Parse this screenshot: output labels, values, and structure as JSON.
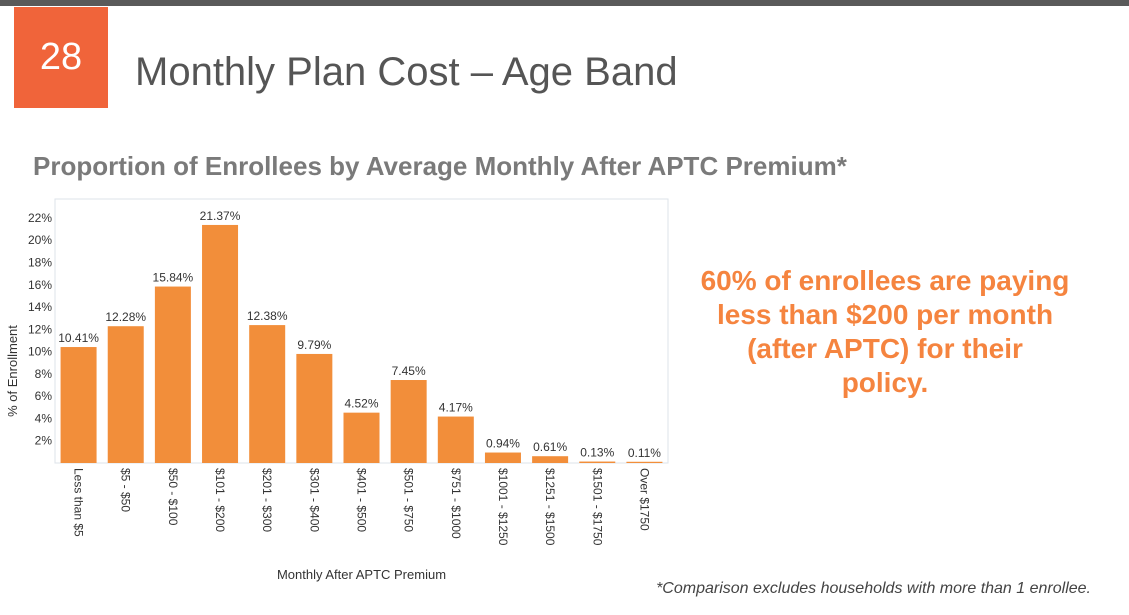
{
  "slide": {
    "number": "28",
    "title": "Monthly Plan Cost – Age Band",
    "subtitle": "Proportion of Enrollees by Average Monthly After APTC Premium*",
    "callout": "60% of enrollees are paying less than $200 per month (after APTC) for their policy.",
    "footnote": "*Comparison excludes households with more than 1 enrollee."
  },
  "colors": {
    "accent": "#f0643a",
    "bar": "#f28e3a",
    "callout": "#f5843f"
  },
  "chart_data": {
    "type": "bar",
    "title": "",
    "xlabel": "Monthly After APTC Premium",
    "ylabel": "% of Enrollment",
    "ylim": [
      0,
      23.7
    ],
    "yticks": [
      2,
      4,
      6,
      8,
      10,
      12,
      14,
      16,
      18,
      20,
      22
    ],
    "ytick_labels": [
      "2%",
      "4%",
      "6%",
      "8%",
      "10%",
      "12%",
      "14%",
      "16%",
      "18%",
      "20%",
      "22%"
    ],
    "categories": [
      "Less than $5",
      "$5 - $50",
      "$50 - $100",
      "$101 - $200",
      "$201 - $300",
      "$301 - $400",
      "$401 - $500",
      "$501 - $750",
      "$751 - $1000",
      "$1001 - $1250",
      "$1251 - $1500",
      "$1501 - $1750",
      "Over $1750"
    ],
    "values": [
      10.41,
      12.28,
      15.84,
      21.37,
      12.38,
      9.79,
      4.52,
      7.45,
      4.17,
      0.94,
      0.61,
      0.13,
      0.11
    ],
    "data_labels": [
      "10.41%",
      "12.28%",
      "15.84%",
      "21.37%",
      "12.38%",
      "9.79%",
      "4.52%",
      "7.45%",
      "4.17%",
      "0.94%",
      "0.61%",
      "0.13%",
      "0.11%"
    ],
    "grid": false
  }
}
